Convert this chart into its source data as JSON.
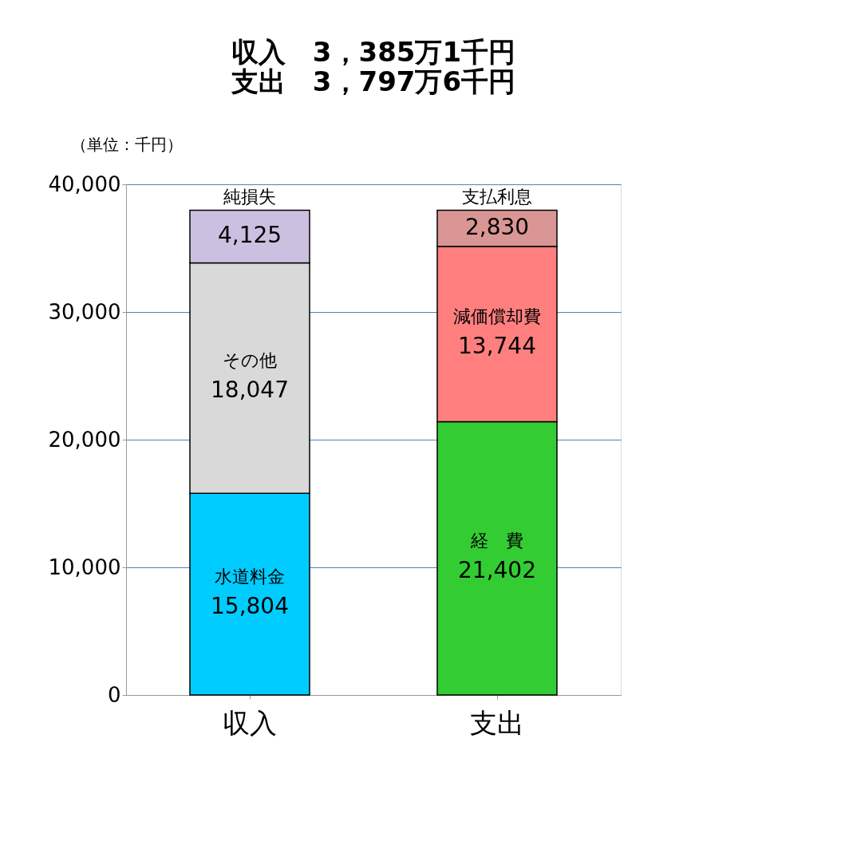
{
  "chart_data": {
    "type": "bar",
    "title": "収入　3，385万1千円",
    "subtitle": "支出　3，797万6千円",
    "ylabel": "（単位：千円）",
    "categories": [
      "収入",
      "支出"
    ],
    "series": [
      {
        "name": "水道料金",
        "color": "#00ccff",
        "values": [
          15804,
          null
        ],
        "value_labels": [
          "15,804",
          null
        ]
      },
      {
        "name": "その他",
        "color": "#d9d9d9",
        "values": [
          18047,
          null
        ],
        "value_labels": [
          "18,047",
          null
        ]
      },
      {
        "name": "純損失",
        "color": "#ccc0e0",
        "values": [
          4125,
          null
        ],
        "value_labels": [
          "4,125",
          null
        ]
      },
      {
        "name": "経　費",
        "color": "#33cc33",
        "values": [
          null,
          21402
        ],
        "value_labels": [
          null,
          "21,402"
        ]
      },
      {
        "name": "減価償却費",
        "color": "#ff7f7f",
        "values": [
          null,
          13744
        ],
        "value_labels": [
          null,
          "13,744"
        ]
      },
      {
        "name": "支払利息",
        "color": "#d99694",
        "values": [
          null,
          2830
        ],
        "value_labels": [
          null,
          "2,830"
        ]
      }
    ],
    "stacked": true,
    "ylim": [
      0,
      40000
    ],
    "yticks": [
      0,
      {
        "value": 10000,
        "label": "10,000"
      },
      {
        "value": 20000,
        "label": "20,000"
      },
      {
        "value": 30000,
        "label": "30,000"
      },
      {
        "value": 40000,
        "label": "40,000"
      }
    ],
    "grid": "y"
  }
}
